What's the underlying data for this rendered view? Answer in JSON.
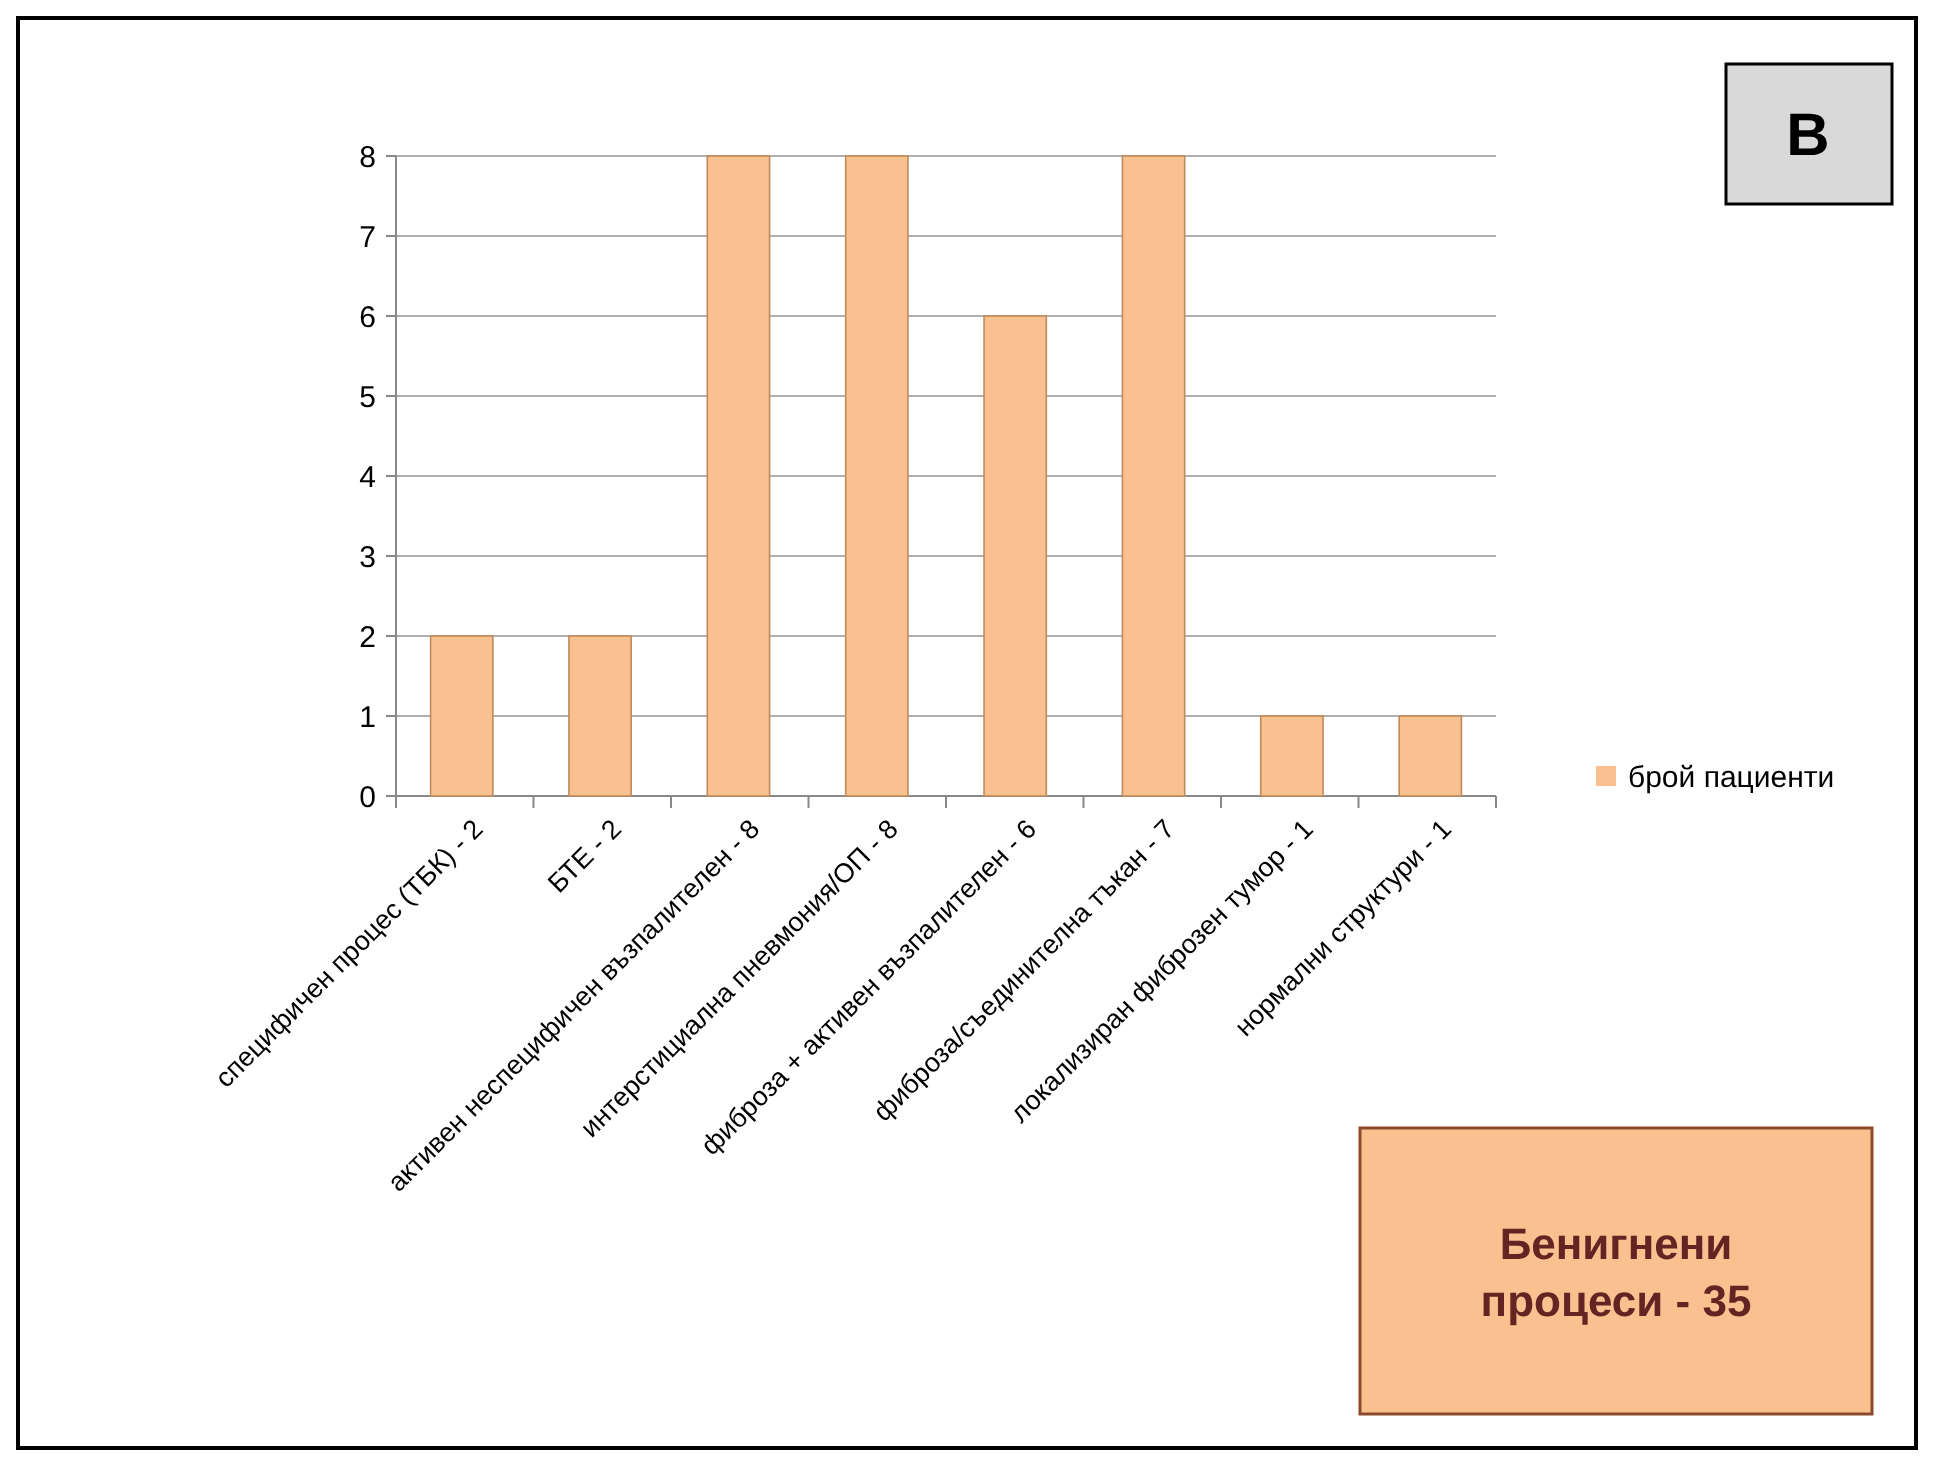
{
  "chart_data": {
    "type": "bar",
    "categories": [
      "специфичен процес (ТБК) - 2",
      "БТЕ - 2",
      "активен неспецифичен възпалителен - 8",
      "интерстициална пневмония/ОП - 8",
      "фиброза + активен възпалителен - 6",
      "фиброза/съединителна тъкан - 7",
      "локализиран фиброзен тумор - 1",
      "нормални структури - 1"
    ],
    "series": [
      {
        "name": "брой пациенти",
        "color": "#fac090",
        "values": [
          2,
          2,
          8,
          8,
          6,
          8,
          1,
          1
        ]
      }
    ],
    "ylim": [
      0,
      8
    ],
    "yticks": [
      0,
      1,
      2,
      3,
      4,
      5,
      6,
      7,
      8
    ],
    "grid": "y",
    "legend": "right",
    "annotations": [
      "В",
      "Бенигнени процеси - 35"
    ]
  }
}
